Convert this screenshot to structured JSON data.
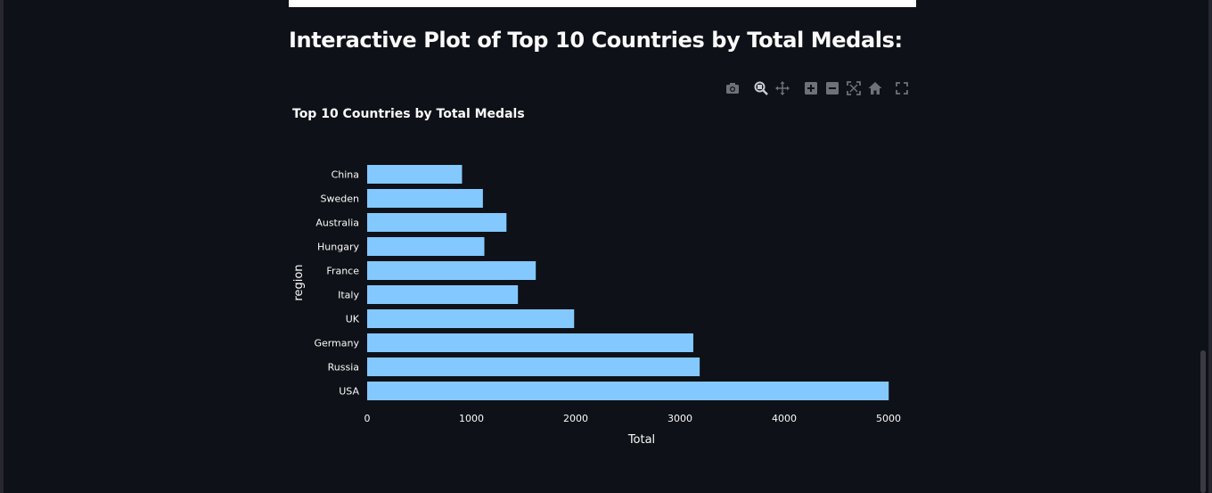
{
  "page": {
    "heading": "Interactive Plot of Top 10 Countries by Total Medals:"
  },
  "modebar": {
    "icons": [
      "camera-icon",
      "zoom-icon",
      "pan-icon",
      "zoom-in-icon",
      "zoom-out-icon",
      "autoscale-icon",
      "reset-axes-icon",
      "fullscreen-icon"
    ]
  },
  "chart_data": {
    "type": "bar",
    "orientation": "horizontal",
    "title": "Top 10 Countries by Total Medals",
    "xlabel": "Total",
    "ylabel": "region",
    "categories": [
      "USA",
      "Russia",
      "Germany",
      "UK",
      "Italy",
      "France",
      "Hungary",
      "Australia",
      "Sweden",
      "China"
    ],
    "values": [
      5002,
      3189,
      3128,
      1985,
      1446,
      1617,
      1124,
      1336,
      1110,
      910
    ],
    "xlim": [
      0,
      5000
    ],
    "xticks": [
      0,
      1000,
      2000,
      3000,
      4000,
      5000
    ],
    "grid": false,
    "bar_color": "#83c9ff",
    "text_color": "#fafafa"
  }
}
